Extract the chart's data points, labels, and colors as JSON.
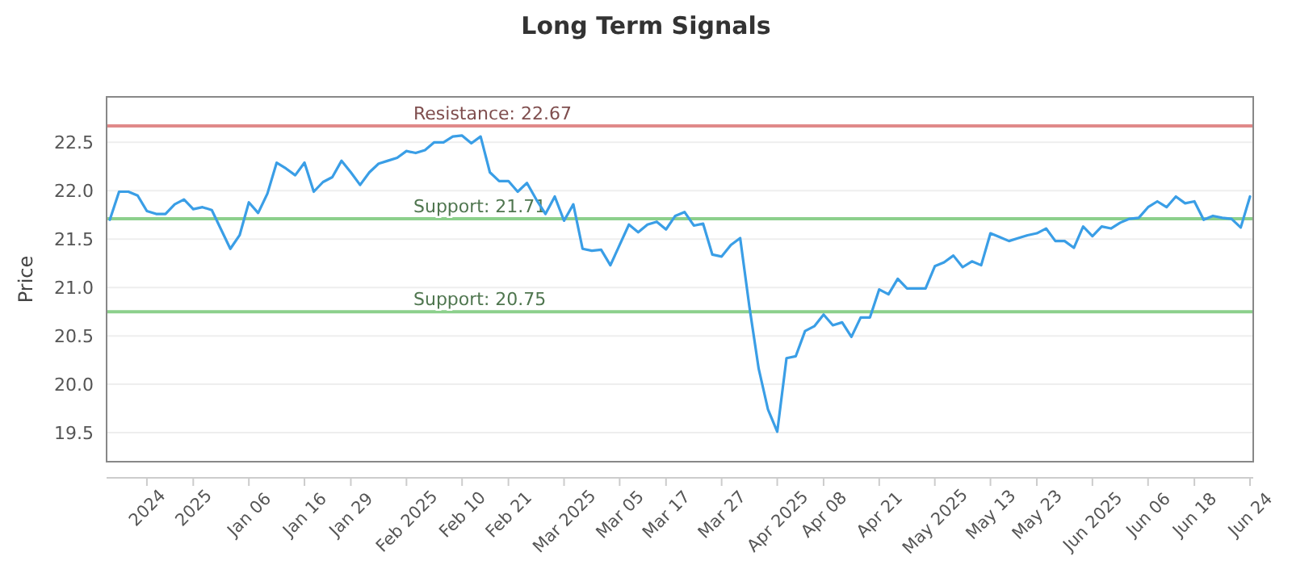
{
  "chart_data": {
    "type": "line",
    "title": "Long Term Signals",
    "ylabel": "Price",
    "categories": [
      null,
      null,
      null,
      null,
      "2024",
      null,
      null,
      null,
      null,
      "2025",
      null,
      null,
      null,
      null,
      null,
      "Jan 06",
      null,
      null,
      null,
      null,
      null,
      "Jan 16",
      null,
      null,
      null,
      null,
      "Jan 29",
      null,
      null,
      null,
      null,
      null,
      "Feb 2025",
      null,
      null,
      null,
      null,
      null,
      "Feb 10",
      null,
      null,
      null,
      null,
      "Feb 21",
      null,
      null,
      null,
      null,
      null,
      "Mar 2025",
      null,
      null,
      null,
      null,
      null,
      "Mar 05",
      null,
      null,
      null,
      null,
      "Mar 17",
      null,
      null,
      null,
      null,
      null,
      "Mar 27",
      null,
      null,
      null,
      null,
      null,
      "Apr 2025",
      null,
      null,
      null,
      null,
      "Apr 08",
      null,
      null,
      null,
      null,
      null,
      "Apr 21",
      null,
      null,
      null,
      null,
      null,
      "May 2025",
      null,
      null,
      null,
      null,
      null,
      "May 13",
      null,
      null,
      null,
      null,
      "May 23",
      null,
      null,
      null,
      null,
      null,
      "Jun 2025",
      null,
      null,
      null,
      null,
      null,
      "Jun 06",
      null,
      null,
      null,
      null,
      "Jun 18",
      null,
      null,
      null,
      null,
      null,
      "Jun 24"
    ],
    "series": [
      {
        "color": "#3a9ee6",
        "values": [
          21.7,
          21.99,
          21.99,
          21.95,
          21.79,
          21.76,
          21.76,
          21.86,
          21.91,
          21.81,
          21.83,
          21.8,
          21.6,
          21.4,
          21.54,
          21.88,
          21.77,
          21.97,
          22.29,
          22.23,
          22.16,
          22.29,
          21.99,
          22.09,
          22.14,
          22.31,
          22.19,
          22.06,
          22.19,
          22.28,
          22.31,
          22.34,
          22.41,
          22.39,
          22.42,
          22.5,
          22.5,
          22.56,
          22.57,
          22.49,
          22.56,
          22.19,
          22.1,
          22.1,
          21.99,
          22.08,
          21.91,
          21.76,
          21.94,
          21.69,
          21.86,
          21.4,
          21.38,
          21.39,
          21.23,
          21.44,
          21.65,
          21.57,
          21.65,
          21.68,
          21.6,
          21.74,
          21.78,
          21.64,
          21.66,
          21.34,
          21.32,
          21.44,
          21.51,
          20.8,
          20.16,
          19.74,
          19.51,
          20.27,
          20.29,
          20.55,
          20.6,
          20.72,
          20.61,
          20.64,
          20.49,
          20.69,
          20.69,
          20.98,
          20.93,
          21.09,
          20.99,
          20.99,
          20.99,
          21.22,
          21.26,
          21.33,
          21.21,
          21.27,
          21.23,
          21.56,
          21.52,
          21.48,
          21.51,
          21.54,
          21.56,
          21.61,
          21.48,
          21.48,
          21.41,
          21.63,
          21.53,
          21.63,
          21.61,
          21.67,
          21.71,
          21.72,
          21.83,
          21.89,
          21.83,
          21.94,
          21.87,
          21.89,
          21.7,
          21.74,
          21.72,
          21.71,
          21.62,
          21.94
        ]
      }
    ],
    "ylim": [
      19.2,
      22.97
    ],
    "yticks": [
      19.5,
      {
        "value": 20,
        "label": "20.0"
      },
      20.5,
      {
        "value": 21,
        "label": "21.0"
      },
      21.5,
      {
        "value": 22,
        "label": "22.0"
      },
      22.5
    ],
    "grid": "y",
    "legend": false,
    "marker": "none",
    "line_style": "solid",
    "ref_lines": [
      {
        "axis": "y",
        "value": 22.67,
        "label": "Resistance: 22.67",
        "color": "#e08a8a"
      },
      {
        "axis": "y",
        "value": 21.71,
        "label": "Support: 21.71",
        "color": "#8cd08c"
      },
      {
        "axis": "y",
        "value": 20.75,
        "label": "Support: 20.75",
        "color": "#8cd08c"
      }
    ]
  }
}
